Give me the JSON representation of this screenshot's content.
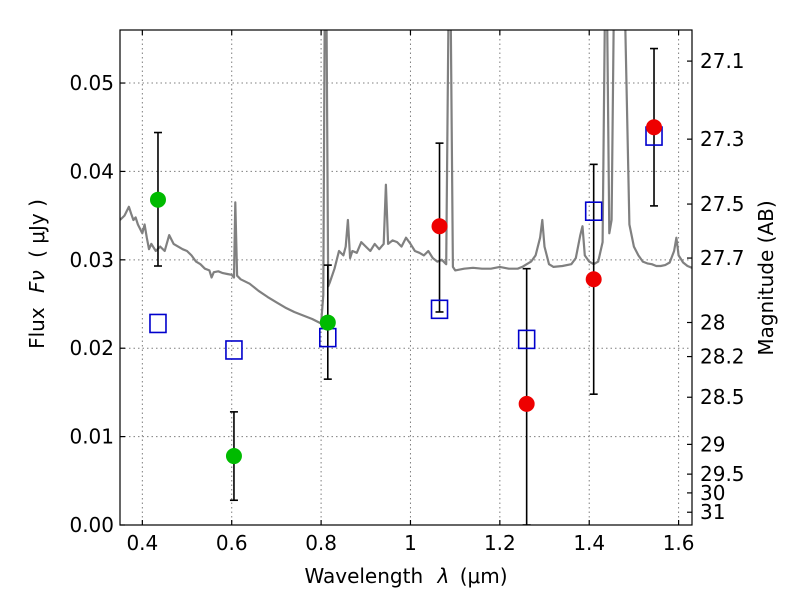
{
  "chart_data": {
    "type": "scatter",
    "title": "",
    "xlabel_text": "Wavelength",
    "xlabel_symbol": "λ",
    "xlabel_unit": "(μm)",
    "ylabel_text": "Flux",
    "ylabel_symbol": "Fν",
    "ylabel_unit": "( μJy )",
    "y2label": "Magnitude (AB)",
    "xlim": [
      0.35,
      1.63
    ],
    "ylim": [
      0.0,
      0.056
    ],
    "grid": true,
    "x_ticks": [
      {
        "value": 0.4,
        "label": "0.4"
      },
      {
        "value": 0.6,
        "label": "0.6"
      },
      {
        "value": 0.8,
        "label": "0.8"
      },
      {
        "value": 1.0,
        "label": "1"
      },
      {
        "value": 1.2,
        "label": "1.2"
      },
      {
        "value": 1.4,
        "label": "1.4"
      },
      {
        "value": 1.6,
        "label": "1.6"
      }
    ],
    "y_ticks": [
      {
        "value": 0.0,
        "label": "0.00"
      },
      {
        "value": 0.01,
        "label": "0.01"
      },
      {
        "value": 0.02,
        "label": "0.02"
      },
      {
        "value": 0.03,
        "label": "0.03"
      },
      {
        "value": 0.04,
        "label": "0.04"
      },
      {
        "value": 0.05,
        "label": "0.05"
      }
    ],
    "y2_ticks": [
      {
        "mag": 27.1,
        "label": "27.1"
      },
      {
        "mag": 27.3,
        "label": "27.3"
      },
      {
        "mag": 27.5,
        "label": "27.5"
      },
      {
        "mag": 27.7,
        "label": "27.7"
      },
      {
        "mag": 28.0,
        "label": "28"
      },
      {
        "mag": 28.2,
        "label": "28.2"
      },
      {
        "mag": 28.5,
        "label": "28.5"
      },
      {
        "mag": 29.0,
        "label": "29"
      },
      {
        "mag": 29.5,
        "label": "29.5"
      },
      {
        "mag": 30.0,
        "label": "30"
      },
      {
        "mag": 31.0,
        "label": "31"
      }
    ],
    "series": [
      {
        "kind": "line",
        "color": "#808080",
        "points": [
          [
            0.35,
            0.0345
          ],
          [
            0.36,
            0.035
          ],
          [
            0.37,
            0.036
          ],
          [
            0.375,
            0.0352
          ],
          [
            0.38,
            0.0345
          ],
          [
            0.385,
            0.0348
          ],
          [
            0.39,
            0.034
          ],
          [
            0.395,
            0.0335
          ],
          [
            0.4,
            0.033
          ],
          [
            0.405,
            0.034
          ],
          [
            0.41,
            0.0325
          ],
          [
            0.415,
            0.0312
          ],
          [
            0.42,
            0.0318
          ],
          [
            0.43,
            0.031
          ],
          [
            0.44,
            0.0315
          ],
          [
            0.45,
            0.031
          ],
          [
            0.46,
            0.0328
          ],
          [
            0.47,
            0.0318
          ],
          [
            0.48,
            0.0315
          ],
          [
            0.49,
            0.0312
          ],
          [
            0.5,
            0.031
          ],
          [
            0.51,
            0.0305
          ],
          [
            0.52,
            0.0298
          ],
          [
            0.53,
            0.0295
          ],
          [
            0.54,
            0.029
          ],
          [
            0.55,
            0.0288
          ],
          [
            0.555,
            0.028
          ],
          [
            0.56,
            0.0286
          ],
          [
            0.57,
            0.0287
          ],
          [
            0.58,
            0.0285
          ],
          [
            0.59,
            0.0284
          ],
          [
            0.6,
            0.0283
          ],
          [
            0.605,
            0.028
          ],
          [
            0.608,
            0.0365
          ],
          [
            0.612,
            0.0282
          ],
          [
            0.62,
            0.0278
          ],
          [
            0.64,
            0.0273
          ],
          [
            0.66,
            0.0265
          ],
          [
            0.68,
            0.0258
          ],
          [
            0.7,
            0.0252
          ],
          [
            0.72,
            0.0246
          ],
          [
            0.74,
            0.0241
          ],
          [
            0.76,
            0.0237
          ],
          [
            0.78,
            0.0233
          ],
          [
            0.8,
            0.0228
          ],
          [
            0.805,
            0.026
          ],
          [
            0.808,
            0.058
          ],
          [
            0.812,
            0.058
          ],
          [
            0.816,
            0.027
          ],
          [
            0.82,
            0.0275
          ],
          [
            0.83,
            0.029
          ],
          [
            0.84,
            0.031
          ],
          [
            0.85,
            0.0305
          ],
          [
            0.855,
            0.0315
          ],
          [
            0.86,
            0.0345
          ],
          [
            0.865,
            0.0302
          ],
          [
            0.87,
            0.031
          ],
          [
            0.88,
            0.0308
          ],
          [
            0.89,
            0.032
          ],
          [
            0.9,
            0.0315
          ],
          [
            0.91,
            0.031
          ],
          [
            0.92,
            0.0318
          ],
          [
            0.93,
            0.0312
          ],
          [
            0.94,
            0.0318
          ],
          [
            0.945,
            0.0385
          ],
          [
            0.95,
            0.0318
          ],
          [
            0.96,
            0.0322
          ],
          [
            0.97,
            0.032
          ],
          [
            0.98,
            0.0315
          ],
          [
            0.99,
            0.0325
          ],
          [
            1.0,
            0.0318
          ],
          [
            1.01,
            0.031
          ],
          [
            1.02,
            0.0308
          ],
          [
            1.03,
            0.0305
          ],
          [
            1.04,
            0.031
          ],
          [
            1.05,
            0.0302
          ],
          [
            1.06,
            0.0298
          ],
          [
            1.07,
            0.03
          ],
          [
            1.08,
            0.0295
          ],
          [
            1.085,
            0.058
          ],
          [
            1.09,
            0.058
          ],
          [
            1.095,
            0.0292
          ],
          [
            1.1,
            0.0288
          ],
          [
            1.12,
            0.029
          ],
          [
            1.14,
            0.0291
          ],
          [
            1.16,
            0.029
          ],
          [
            1.18,
            0.029
          ],
          [
            1.2,
            0.0292
          ],
          [
            1.22,
            0.029
          ],
          [
            1.24,
            0.029
          ],
          [
            1.25,
            0.0292
          ],
          [
            1.26,
            0.0295
          ],
          [
            1.27,
            0.0298
          ],
          [
            1.28,
            0.0305
          ],
          [
            1.29,
            0.0325
          ],
          [
            1.295,
            0.0345
          ],
          [
            1.3,
            0.0315
          ],
          [
            1.31,
            0.0295
          ],
          [
            1.32,
            0.0292
          ],
          [
            1.34,
            0.0293
          ],
          [
            1.36,
            0.0295
          ],
          [
            1.37,
            0.0302
          ],
          [
            1.38,
            0.0328
          ],
          [
            1.385,
            0.0338
          ],
          [
            1.39,
            0.0305
          ],
          [
            1.4,
            0.0298
          ],
          [
            1.41,
            0.0295
          ],
          [
            1.42,
            0.0298
          ],
          [
            1.43,
            0.032
          ],
          [
            1.435,
            0.058
          ],
          [
            1.44,
            0.058
          ],
          [
            1.445,
            0.033
          ],
          [
            1.45,
            0.0345
          ],
          [
            1.455,
            0.058
          ],
          [
            1.48,
            0.058
          ],
          [
            1.49,
            0.034
          ],
          [
            1.5,
            0.0315
          ],
          [
            1.51,
            0.0305
          ],
          [
            1.52,
            0.0298
          ],
          [
            1.53,
            0.0296
          ],
          [
            1.54,
            0.0295
          ],
          [
            1.55,
            0.0293
          ],
          [
            1.56,
            0.0293
          ],
          [
            1.57,
            0.0294
          ],
          [
            1.58,
            0.0297
          ],
          [
            1.59,
            0.031
          ],
          [
            1.595,
            0.0325
          ],
          [
            1.6,
            0.0305
          ],
          [
            1.61,
            0.0297
          ],
          [
            1.62,
            0.0293
          ],
          [
            1.63,
            0.0291
          ]
        ]
      },
      {
        "kind": "squares",
        "color": "#0000cc",
        "points": [
          [
            0.435,
            0.0228
          ],
          [
            0.605,
            0.0198
          ],
          [
            0.815,
            0.0212
          ],
          [
            1.065,
            0.0244
          ],
          [
            1.26,
            0.021
          ],
          [
            1.41,
            0.0355
          ],
          [
            1.545,
            0.044
          ]
        ]
      },
      {
        "kind": "markers",
        "color": "#00bb00",
        "points": [
          {
            "x": 0.435,
            "y": 0.0368,
            "lo": 0.0293,
            "hi": 0.0444
          },
          {
            "x": 0.605,
            "y": 0.0078,
            "lo": 0.0028,
            "hi": 0.0128
          },
          {
            "x": 0.815,
            "y": 0.0229,
            "lo": 0.0165,
            "hi": 0.0294
          }
        ]
      },
      {
        "kind": "markers",
        "color": "#ee0000",
        "points": [
          {
            "x": 1.065,
            "y": 0.0338,
            "lo": 0.0241,
            "hi": 0.0432
          },
          {
            "x": 1.26,
            "y": 0.0137,
            "lo": 0.0,
            "hi": 0.029
          },
          {
            "x": 1.41,
            "y": 0.0278,
            "lo": 0.0148,
            "hi": 0.0408
          },
          {
            "x": 1.545,
            "y": 0.045,
            "lo": 0.0361,
            "hi": 0.0539
          }
        ]
      }
    ]
  }
}
